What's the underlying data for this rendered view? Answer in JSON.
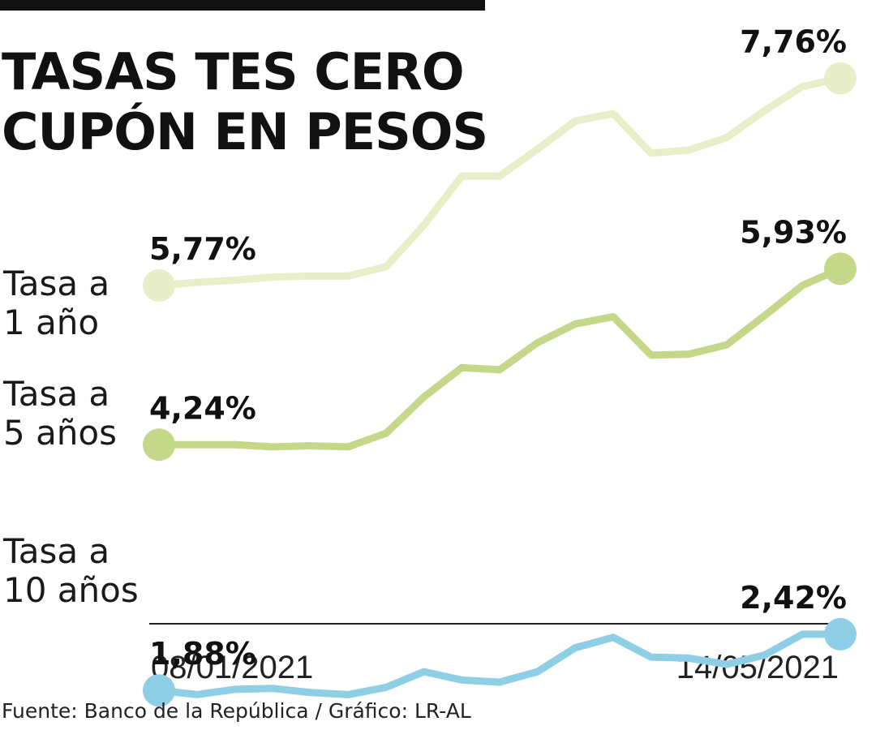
{
  "title_lines": [
    "TASAS TES CERO",
    "CUPÓN EN PESOS"
  ],
  "source": "Fuente: Banco de la República / Gráfico: LR-AL",
  "chart_data": {
    "type": "line",
    "x": [
      "08/01/2021",
      "",
      "",
      "",
      "",
      "",
      "",
      "",
      "",
      "",
      "",
      "",
      "",
      "",
      "",
      "",
      "",
      "",
      "14/05/2021"
    ],
    "x_tick_labels": [
      "08/01/2021",
      "14/05/2021"
    ],
    "ylim": [
      1.5,
      8.2
    ],
    "grid": false,
    "series": [
      {
        "name_lines": [
          "Tasa a",
          "1 año"
        ],
        "color": "#e8efc8",
        "values": [
          5.77,
          5.8,
          5.82,
          5.85,
          5.86,
          5.86,
          5.95,
          6.35,
          6.82,
          6.82,
          7.08,
          7.35,
          7.42,
          7.04,
          7.07,
          7.19,
          7.45,
          7.68,
          7.76
        ],
        "start_label": "5,77%",
        "end_label": "7,76%"
      },
      {
        "name_lines": [
          "Tasa a",
          "5 años"
        ],
        "color": "#c5d88a",
        "values": [
          4.24,
          4.24,
          4.24,
          4.22,
          4.23,
          4.22,
          4.35,
          4.7,
          4.98,
          4.96,
          5.22,
          5.4,
          5.47,
          5.1,
          5.11,
          5.2,
          5.48,
          5.77,
          5.93
        ],
        "start_label": "4,24%",
        "end_label": "5,93%"
      },
      {
        "name_lines": [
          "Tasa a",
          "10 años"
        ],
        "color": "#8ecfe6",
        "values": [
          1.88,
          1.84,
          1.89,
          1.9,
          1.86,
          1.84,
          1.91,
          2.06,
          1.98,
          1.96,
          2.06,
          2.29,
          2.39,
          2.2,
          2.19,
          2.13,
          2.22,
          2.42,
          2.42
        ],
        "start_label": "1,88%",
        "end_label": "2,42%"
      }
    ]
  }
}
